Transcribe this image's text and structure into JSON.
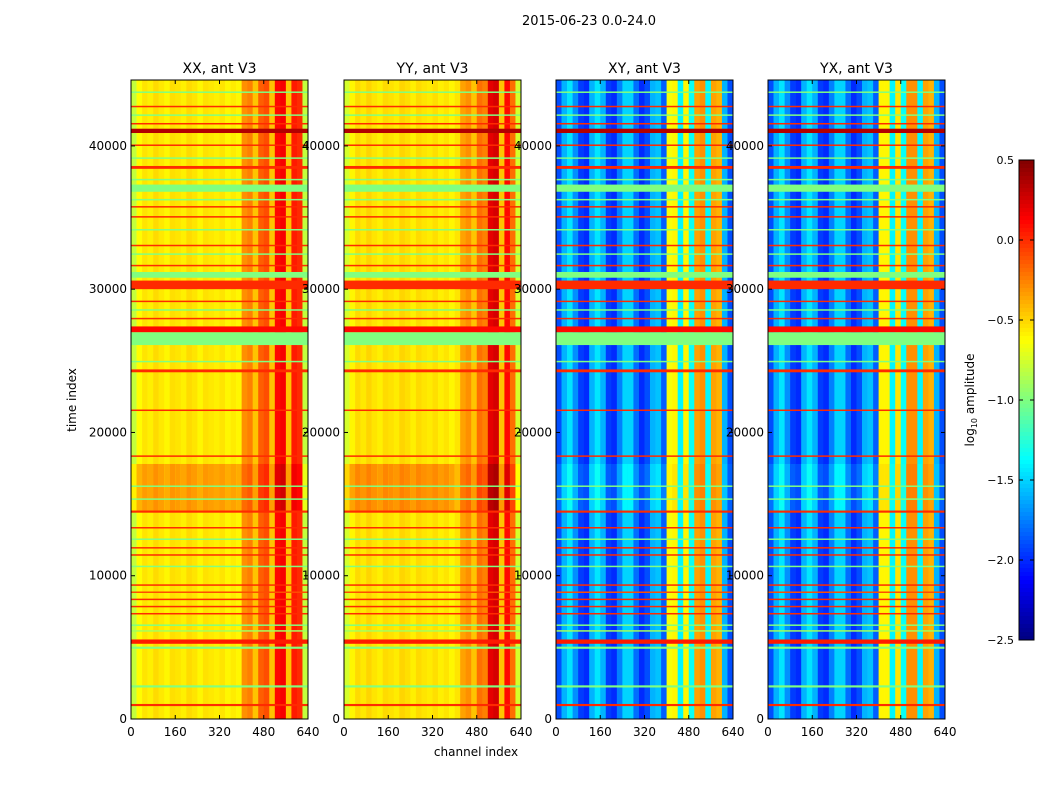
{
  "chart_data": {
    "type": "heatmap",
    "suptitle": "2015-06-23 0.0-24.0",
    "xlabel": "channel index",
    "ylabel": "time index",
    "xlim": [
      0,
      640
    ],
    "ylim": [
      0,
      44600
    ],
    "xticks": [
      "0",
      "160",
      "320",
      "480",
      "640"
    ],
    "xtick_values": [
      0,
      160,
      320,
      480,
      640
    ],
    "yticks": [
      "0",
      "10000",
      "20000",
      "30000",
      "40000"
    ],
    "ytick_values": [
      0,
      10000,
      20000,
      30000,
      40000
    ],
    "channel_bin_width": 20,
    "colorbar": {
      "label": "log10 amplitude",
      "label_main": "log",
      "label_sub": "10",
      "label_rest": " amplitude",
      "range": [
        -2.5,
        0.5
      ],
      "ticks": [
        "0.5",
        "0.0",
        "−0.5",
        "−1.0",
        "−1.5",
        "−2.0",
        "−2.5"
      ],
      "tick_values": [
        0.5,
        0.0,
        -0.5,
        -1.0,
        -1.5,
        -2.0,
        -2.5
      ],
      "colormap": "jet"
    },
    "panels": [
      {
        "title": "XX, ant V3",
        "hot_offset": 0.22,
        "column_profile": [
          -0.8,
          -0.62,
          -0.55,
          -0.58,
          -0.52,
          -0.56,
          -0.6,
          -0.53,
          -0.55,
          -0.58,
          -0.52,
          -0.55,
          -0.6,
          -0.54,
          -0.56,
          -0.58,
          -0.55,
          -0.6,
          -0.57,
          -0.6,
          -0.3,
          -0.25,
          -0.45,
          -0.15,
          -0.1,
          -0.45,
          0.1,
          0.15,
          -0.45,
          0.05,
          0.0,
          -0.8
        ]
      },
      {
        "title": "YY, ant V3",
        "hot_offset": 0.25,
        "column_profile": [
          -0.75,
          -0.6,
          -0.52,
          -0.56,
          -0.5,
          -0.55,
          -0.58,
          -0.52,
          -0.54,
          -0.57,
          -0.5,
          -0.53,
          -0.58,
          -0.52,
          -0.55,
          -0.57,
          -0.53,
          -0.58,
          -0.55,
          -0.6,
          -0.55,
          -0.35,
          -0.3,
          -0.45,
          -0.2,
          -0.25,
          0.2,
          0.25,
          -0.45,
          0.1,
          -0.2,
          -0.75
        ]
      },
      {
        "title": "XY, ant V3",
        "hot_offset": 0.1,
        "column_profile": [
          -1.9,
          -1.6,
          -1.45,
          -1.7,
          -1.95,
          -2.0,
          -1.6,
          -1.45,
          -1.6,
          -1.95,
          -2.0,
          -1.75,
          -1.5,
          -1.5,
          -1.8,
          -2.0,
          -1.9,
          -1.6,
          -1.55,
          -1.85,
          -0.65,
          -0.6,
          -1.4,
          -0.6,
          -1.35,
          -0.35,
          -0.3,
          -1.4,
          -0.35,
          -0.4,
          -1.6,
          -1.9
        ]
      },
      {
        "title": "YX, ant V3",
        "hot_offset": 0.1,
        "column_profile": [
          -1.9,
          -1.6,
          -1.45,
          -1.7,
          -1.95,
          -2.0,
          -1.6,
          -1.45,
          -1.6,
          -1.95,
          -2.0,
          -1.75,
          -1.5,
          -1.5,
          -1.8,
          -2.0,
          -1.9,
          -1.6,
          -1.55,
          -1.85,
          -0.6,
          -0.6,
          -1.4,
          -0.55,
          -1.35,
          -0.3,
          -0.3,
          -1.4,
          -0.35,
          -0.4,
          -1.6,
          -1.9
        ]
      }
    ],
    "hot_band": [
      14500,
      17800
    ],
    "flagged_rows": [
      [
        900,
        1050,
        0.0
      ],
      [
        2200,
        2350,
        -1.0
      ],
      [
        4900,
        5050,
        -1.0
      ],
      [
        5250,
        5550,
        0.05
      ],
      [
        6100,
        6200,
        -0.9
      ],
      [
        6500,
        6600,
        -1.0
      ],
      [
        7300,
        7400,
        0.0
      ],
      [
        7800,
        7900,
        0.0
      ],
      [
        8300,
        8400,
        0.0
      ],
      [
        8800,
        8900,
        -0.1
      ],
      [
        9300,
        9400,
        0.0
      ],
      [
        10600,
        10700,
        -1.0
      ],
      [
        11400,
        11500,
        0.0
      ],
      [
        11900,
        12000,
        0.0
      ],
      [
        12500,
        12600,
        -1.0
      ],
      [
        13300,
        13400,
        0.0
      ],
      [
        14400,
        14550,
        0.0
      ],
      [
        15300,
        15400,
        -1.0
      ],
      [
        16200,
        16300,
        -1.0
      ],
      [
        18300,
        18400,
        0.0
      ],
      [
        21500,
        21600,
        0.0
      ],
      [
        24200,
        24400,
        0.0
      ],
      [
        24900,
        25000,
        -1.0
      ],
      [
        26100,
        27000,
        -1.0
      ],
      [
        27000,
        27400,
        0.1
      ],
      [
        27900,
        28000,
        0.0
      ],
      [
        28500,
        28600,
        -1.0
      ],
      [
        29100,
        29200,
        0.0
      ],
      [
        30000,
        30600,
        0.0
      ],
      [
        30800,
        31200,
        -1.0
      ],
      [
        31600,
        31700,
        0.0
      ],
      [
        32400,
        32500,
        -1.0
      ],
      [
        33000,
        33100,
        0.0
      ],
      [
        34100,
        34200,
        -1.0
      ],
      [
        35000,
        35100,
        0.0
      ],
      [
        35700,
        35800,
        0.0
      ],
      [
        36200,
        36300,
        -1.0
      ],
      [
        36800,
        37300,
        -1.0
      ],
      [
        37600,
        37700,
        -1.0
      ],
      [
        38400,
        38600,
        0.0
      ],
      [
        39100,
        39200,
        -1.0
      ],
      [
        40000,
        40100,
        0.0
      ],
      [
        40900,
        41200,
        0.35
      ],
      [
        41500,
        41600,
        0.0
      ],
      [
        42100,
        42200,
        -1.0
      ],
      [
        42700,
        42800,
        0.0
      ],
      [
        43700,
        43800,
        -1.0
      ]
    ]
  }
}
